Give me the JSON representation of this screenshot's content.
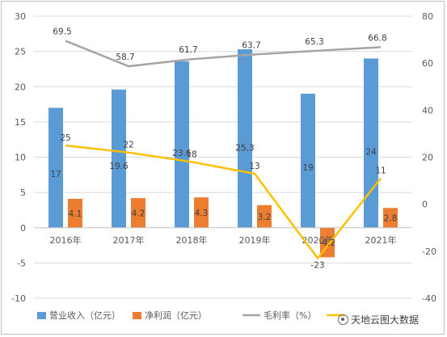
{
  "chart_data": {
    "type": "bar",
    "categories": [
      "2016年",
      "2017年",
      "2018年",
      "2019年",
      "2020年",
      "2021年"
    ],
    "series": [
      {
        "name": "营业收入（亿元）",
        "kind": "bar",
        "axis": "left",
        "color": "#5b9bd5",
        "values": [
          17,
          19.6,
          23.6,
          25.3,
          19,
          24
        ],
        "labels": [
          "17",
          "19.6",
          "23.6",
          "25.3",
          "19",
          "24"
        ]
      },
      {
        "name": "净利润（亿元）",
        "kind": "bar",
        "axis": "left",
        "color": "#ed7d31",
        "values": [
          4.1,
          4.2,
          4.3,
          3.2,
          -4.2,
          2.8
        ],
        "labels": [
          "4.1",
          "4.2",
          "4.3",
          "3.2",
          "-4.2",
          "2.8"
        ]
      },
      {
        "name": "毛利率（%）",
        "kind": "line",
        "axis": "right",
        "color": "#a5a5a5",
        "values": [
          69.5,
          58.7,
          61.7,
          63.7,
          65.3,
          66.8
        ],
        "labels": [
          "69.5",
          "58.7",
          "61.7",
          "63.7",
          "65.3",
          "66.8"
        ]
      },
      {
        "name": "",
        "kind": "line",
        "axis": "right",
        "color": "#ffc000",
        "values": [
          25,
          22,
          18,
          13,
          -23,
          11
        ],
        "labels": [
          "25",
          "22",
          "18",
          "13",
          "-23",
          "11"
        ]
      }
    ],
    "y_left": {
      "range": [
        -10,
        30
      ],
      "ticks": [
        "30",
        "25",
        "20",
        "15",
        "10",
        "5",
        "0",
        "-5",
        "-10"
      ]
    },
    "y_right": {
      "range": [
        -40,
        80
      ],
      "ticks": [
        "80",
        "60",
        "40",
        "20",
        "0",
        "-20",
        "-40"
      ]
    },
    "grid": true,
    "legend": "bottom",
    "legend_last_truncated": "（%",
    "title": "",
    "xlabel": "",
    "ylabel": ""
  },
  "watermark": "天地云图大数据",
  "colors": {
    "axis_text": "#595959",
    "grid": "#d9d9d9",
    "label": "#404040"
  }
}
